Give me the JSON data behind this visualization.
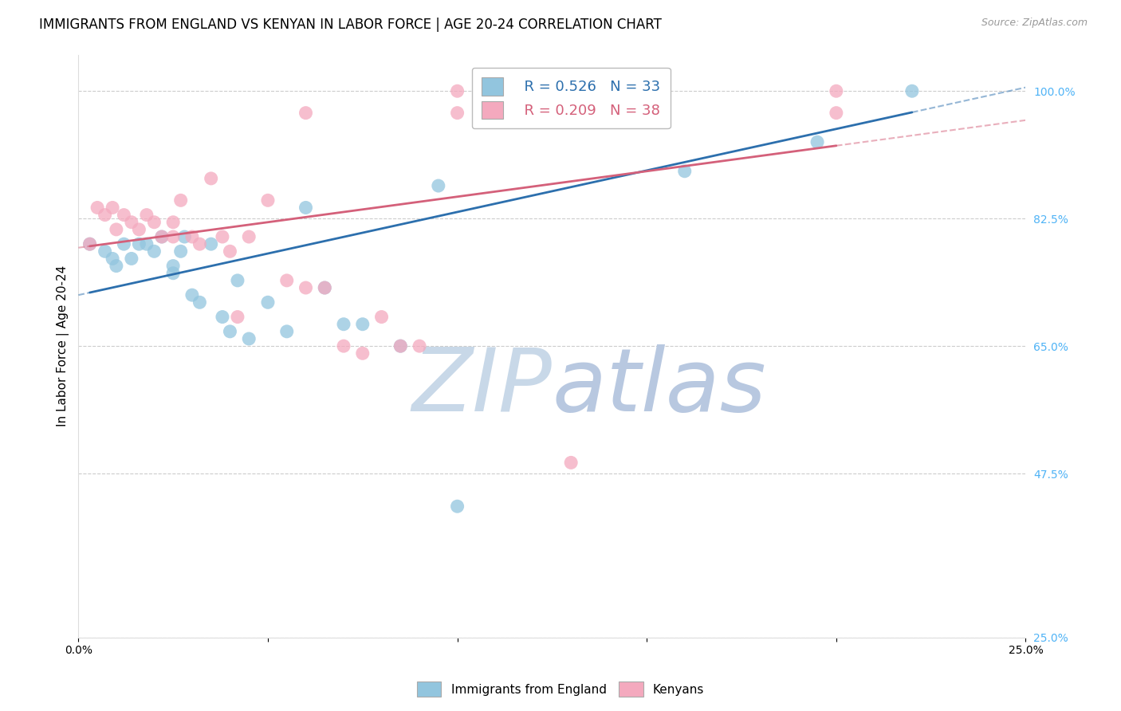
{
  "title": "IMMIGRANTS FROM ENGLAND VS KENYAN IN LABOR FORCE | AGE 20-24 CORRELATION CHART",
  "source_text": "Source: ZipAtlas.com",
  "ylabel": "In Labor Force | Age 20-24",
  "xlim": [
    0.0,
    0.25
  ],
  "ylim": [
    0.25,
    1.05
  ],
  "xticks": [
    0.0,
    0.05,
    0.1,
    0.15,
    0.2,
    0.25
  ],
  "xticklabels": [
    "0.0%",
    "",
    "",
    "",
    "",
    "25.0%"
  ],
  "yticks_right": [
    0.25,
    0.475,
    0.65,
    0.825,
    1.0
  ],
  "yticklabels_right": [
    "25.0%",
    "47.5%",
    "65.0%",
    "82.5%",
    "100.0%"
  ],
  "blue_scatter_x": [
    0.003,
    0.007,
    0.009,
    0.01,
    0.012,
    0.014,
    0.016,
    0.018,
    0.02,
    0.022,
    0.025,
    0.025,
    0.027,
    0.028,
    0.03,
    0.032,
    0.035,
    0.038,
    0.04,
    0.042,
    0.045,
    0.05,
    0.055,
    0.06,
    0.065,
    0.07,
    0.075,
    0.085,
    0.095,
    0.1,
    0.16,
    0.195,
    0.22
  ],
  "blue_scatter_y": [
    0.79,
    0.78,
    0.77,
    0.76,
    0.79,
    0.77,
    0.79,
    0.79,
    0.78,
    0.8,
    0.76,
    0.75,
    0.78,
    0.8,
    0.72,
    0.71,
    0.79,
    0.69,
    0.67,
    0.74,
    0.66,
    0.71,
    0.67,
    0.84,
    0.73,
    0.68,
    0.68,
    0.65,
    0.87,
    0.43,
    0.89,
    0.93,
    1.0
  ],
  "pink_scatter_x": [
    0.003,
    0.005,
    0.007,
    0.009,
    0.01,
    0.012,
    0.014,
    0.016,
    0.018,
    0.02,
    0.022,
    0.025,
    0.025,
    0.027,
    0.03,
    0.032,
    0.035,
    0.038,
    0.04,
    0.042,
    0.045,
    0.05,
    0.055,
    0.06,
    0.06,
    0.065,
    0.07,
    0.075,
    0.08,
    0.085,
    0.09,
    0.1,
    0.1,
    0.12,
    0.13,
    0.135,
    0.2,
    0.2
  ],
  "pink_scatter_y": [
    0.79,
    0.84,
    0.83,
    0.84,
    0.81,
    0.83,
    0.82,
    0.81,
    0.83,
    0.82,
    0.8,
    0.8,
    0.82,
    0.85,
    0.8,
    0.79,
    0.88,
    0.8,
    0.78,
    0.69,
    0.8,
    0.85,
    0.74,
    0.73,
    0.97,
    0.73,
    0.65,
    0.64,
    0.69,
    0.65,
    0.65,
    0.97,
    1.0,
    1.0,
    0.49,
    1.0,
    0.97,
    1.0
  ],
  "blue_line_y_at_0": 0.72,
  "blue_line_y_at_025": 1.005,
  "pink_line_y_at_0": 0.785,
  "pink_line_y_at_025": 0.96,
  "blue_R": "0.526",
  "blue_N": "33",
  "pink_R": "0.209",
  "pink_N": "38",
  "blue_color": "#92c5de",
  "blue_line_color": "#2c6fad",
  "pink_color": "#f4a9be",
  "pink_line_color": "#d4607a",
  "watermark_zip_color": "#c8d8e8",
  "watermark_atlas_color": "#b8c8e0",
  "background_color": "#ffffff",
  "grid_color": "#cccccc",
  "title_fontsize": 12,
  "axis_label_fontsize": 11,
  "tick_fontsize": 10,
  "legend_fontsize": 13,
  "right_tick_color": "#4fb3f6",
  "source_color": "#999999"
}
